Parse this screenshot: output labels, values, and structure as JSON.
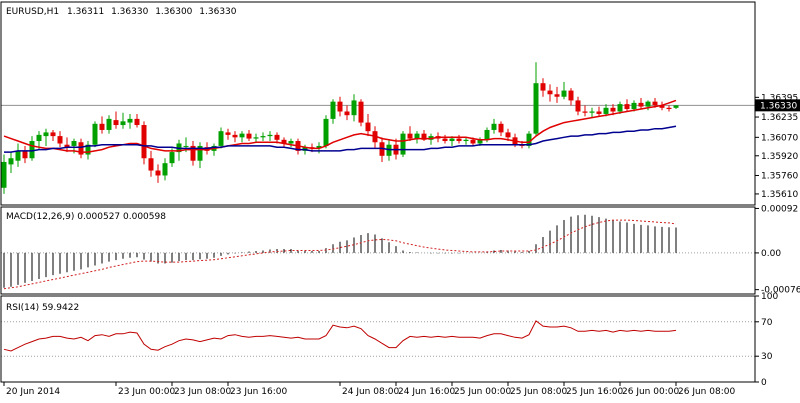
{
  "header": {
    "symbol": "EURUSD,H1",
    "open": "1.36311",
    "high": "1.36330",
    "low": "1.36300",
    "close": "1.36330"
  },
  "colors": {
    "bull": "#00a000",
    "bear": "#e00000",
    "ma_fast": "#e00000",
    "ma_slow": "#000090",
    "macd_hist": "#000000",
    "macd_signal": "#d02020",
    "rsi": "#c00000",
    "price_line": "#909090"
  },
  "chart_data": [
    {
      "type": "candlestick",
      "panel": "price",
      "ylim": [
        1.3552,
        1.3717
      ],
      "ytick_labels": [
        "1.36395",
        "1.36235",
        "1.36070",
        "1.35920",
        "1.35760",
        "1.35610"
      ],
      "ytick_values": [
        1.36395,
        1.36235,
        1.3607,
        1.3592,
        1.3576,
        1.3561
      ],
      "current_price_label": "1.36330",
      "current_price": 1.3633,
      "x_labels": [
        "20 Jun 2014",
        "23 Jun 00:00",
        "23 Jun 08:00",
        "23 Jun 16:00",
        "24 Jun 08:00",
        "24 Jun 16:00",
        "25 Jun 00:00",
        "25 Jun 08:00",
        "25 Jun 16:00",
        "26 Jun 00:00",
        "26 Jun 08:00"
      ],
      "x_label_bars": [
        0,
        16,
        24,
        32,
        48,
        56,
        64,
        72,
        80,
        88,
        96
      ],
      "candles": [
        [
          1.3566,
          1.3593,
          1.3561,
          1.3587
        ],
        [
          1.3585,
          1.3595,
          1.3578,
          1.359
        ],
        [
          1.3588,
          1.3602,
          1.3583,
          1.3596
        ],
        [
          1.3596,
          1.36,
          1.3586,
          1.359
        ],
        [
          1.359,
          1.3608,
          1.3588,
          1.3604
        ],
        [
          1.3604,
          1.3612,
          1.3597,
          1.3609
        ],
        [
          1.3608,
          1.3614,
          1.36,
          1.3611
        ],
        [
          1.3611,
          1.3613,
          1.3604,
          1.3608
        ],
        [
          1.3608,
          1.3612,
          1.3599,
          1.3602
        ],
        [
          1.3601,
          1.3607,
          1.3595,
          1.3599
        ],
        [
          1.36,
          1.3606,
          1.3594,
          1.3604
        ],
        [
          1.3603,
          1.3606,
          1.359,
          1.3593
        ],
        [
          1.3593,
          1.3604,
          1.3589,
          1.3601
        ],
        [
          1.3601,
          1.362,
          1.3599,
          1.3618
        ],
        [
          1.3618,
          1.3624,
          1.361,
          1.3613
        ],
        [
          1.3613,
          1.3625,
          1.361,
          1.3622
        ],
        [
          1.3621,
          1.3628,
          1.3614,
          1.3617
        ],
        [
          1.3617,
          1.3627,
          1.3614,
          1.362
        ],
        [
          1.3619,
          1.3626,
          1.3614,
          1.3622
        ],
        [
          1.3622,
          1.3626,
          1.3615,
          1.3617
        ],
        [
          1.3617,
          1.362,
          1.3585,
          1.359
        ],
        [
          1.359,
          1.3596,
          1.3575,
          1.358
        ],
        [
          1.358,
          1.3585,
          1.357,
          1.3576
        ],
        [
          1.3576,
          1.359,
          1.3572,
          1.3586
        ],
        [
          1.3586,
          1.3598,
          1.3583,
          1.3595
        ],
        [
          1.3595,
          1.3605,
          1.3588,
          1.3602
        ],
        [
          1.36,
          1.3607,
          1.3595,
          1.36
        ],
        [
          1.36,
          1.3604,
          1.3584,
          1.3588
        ],
        [
          1.3588,
          1.3603,
          1.3582,
          1.36
        ],
        [
          1.3599,
          1.3603,
          1.3593,
          1.3596
        ],
        [
          1.3596,
          1.3602,
          1.3592,
          1.36
        ],
        [
          1.36,
          1.3615,
          1.3598,
          1.3612
        ],
        [
          1.3611,
          1.3614,
          1.3605,
          1.3609
        ],
        [
          1.3609,
          1.3612,
          1.3603,
          1.3607
        ],
        [
          1.3607,
          1.3612,
          1.3603,
          1.361
        ],
        [
          1.361,
          1.3613,
          1.3604,
          1.3606
        ],
        [
          1.3606,
          1.361,
          1.3603,
          1.3607
        ],
        [
          1.3607,
          1.3611,
          1.3604,
          1.3608
        ],
        [
          1.3608,
          1.3612,
          1.3604,
          1.3609
        ],
        [
          1.3609,
          1.3611,
          1.3602,
          1.3605
        ],
        [
          1.3605,
          1.3607,
          1.3599,
          1.3602
        ],
        [
          1.3602,
          1.3606,
          1.3599,
          1.3604
        ],
        [
          1.3604,
          1.3606,
          1.3593,
          1.3596
        ],
        [
          1.3596,
          1.3601,
          1.3593,
          1.3599
        ],
        [
          1.3599,
          1.3602,
          1.3595,
          1.3598
        ],
        [
          1.3598,
          1.3603,
          1.3594,
          1.36
        ],
        [
          1.36,
          1.3625,
          1.3598,
          1.3622
        ],
        [
          1.3622,
          1.3638,
          1.3618,
          1.3636
        ],
        [
          1.3636,
          1.364,
          1.3624,
          1.3628
        ],
        [
          1.3628,
          1.3633,
          1.3621,
          1.3625
        ],
        [
          1.3625,
          1.3642,
          1.362,
          1.3637
        ],
        [
          1.3636,
          1.3638,
          1.3616,
          1.3619
        ],
        [
          1.3619,
          1.3626,
          1.3608,
          1.3612
        ],
        [
          1.3612,
          1.3616,
          1.3598,
          1.3603
        ],
        [
          1.3603,
          1.3607,
          1.3587,
          1.3592
        ],
        [
          1.3592,
          1.3605,
          1.3588,
          1.3601
        ],
        [
          1.3601,
          1.3606,
          1.3589,
          1.3593
        ],
        [
          1.3593,
          1.3612,
          1.3591,
          1.361
        ],
        [
          1.361,
          1.3616,
          1.3604,
          1.3606
        ],
        [
          1.3606,
          1.3612,
          1.3602,
          1.361
        ],
        [
          1.361,
          1.3613,
          1.3604,
          1.3605
        ],
        [
          1.3605,
          1.361,
          1.3601,
          1.3608
        ],
        [
          1.3608,
          1.3611,
          1.3603,
          1.3606
        ],
        [
          1.3606,
          1.3609,
          1.3602,
          1.3604
        ],
        [
          1.3604,
          1.3608,
          1.36,
          1.3606
        ],
        [
          1.3606,
          1.3609,
          1.3602,
          1.3604
        ],
        [
          1.3604,
          1.3607,
          1.3601,
          1.3605
        ],
        [
          1.3605,
          1.3607,
          1.36,
          1.3602
        ],
        [
          1.3602,
          1.3607,
          1.36,
          1.3605
        ],
        [
          1.3605,
          1.3615,
          1.3603,
          1.3613
        ],
        [
          1.3613,
          1.3622,
          1.361,
          1.3618
        ],
        [
          1.3618,
          1.362,
          1.3608,
          1.3611
        ],
        [
          1.3611,
          1.3614,
          1.3604,
          1.3607
        ],
        [
          1.3607,
          1.361,
          1.3599,
          1.3601
        ],
        [
          1.3601,
          1.3604,
          1.3598,
          1.36
        ],
        [
          1.36,
          1.3612,
          1.3598,
          1.361
        ],
        [
          1.361,
          1.3668,
          1.3608,
          1.3651
        ],
        [
          1.3651,
          1.3655,
          1.364,
          1.3645
        ],
        [
          1.3645,
          1.365,
          1.3636,
          1.3642
        ],
        [
          1.3642,
          1.3648,
          1.3635,
          1.364
        ],
        [
          1.364,
          1.3652,
          1.3638,
          1.3645
        ],
        [
          1.3645,
          1.3647,
          1.3633,
          1.3637
        ],
        [
          1.3637,
          1.364,
          1.3625,
          1.3628
        ],
        [
          1.3628,
          1.3633,
          1.3624,
          1.3627
        ],
        [
          1.3627,
          1.3631,
          1.3623,
          1.3628
        ],
        [
          1.3628,
          1.3632,
          1.3624,
          1.3626
        ],
        [
          1.3626,
          1.3634,
          1.3624,
          1.3631
        ],
        [
          1.3631,
          1.3634,
          1.3625,
          1.3628
        ],
        [
          1.3628,
          1.3636,
          1.3626,
          1.3634
        ],
        [
          1.3634,
          1.3638,
          1.3628,
          1.363
        ],
        [
          1.363,
          1.3637,
          1.3628,
          1.3635
        ],
        [
          1.3635,
          1.3639,
          1.363,
          1.3632
        ],
        [
          1.3632,
          1.3637,
          1.3629,
          1.3636
        ],
        [
          1.3636,
          1.3639,
          1.3631,
          1.3633
        ],
        [
          1.3633,
          1.3636,
          1.3629,
          1.3631
        ],
        [
          1.3631,
          1.3633,
          1.3628,
          1.363
        ],
        [
          1.3631,
          1.3633,
          1.363,
          1.3633
        ]
      ],
      "ma_fast": [
        1.3608,
        1.3606,
        1.3604,
        1.3602,
        1.36,
        1.3599,
        1.3598,
        1.3598,
        1.3597,
        1.3596,
        1.3596,
        1.3595,
        1.3595,
        1.3596,
        1.3597,
        1.3599,
        1.36,
        1.3601,
        1.3602,
        1.3602,
        1.36,
        1.3598,
        1.3597,
        1.3596,
        1.3596,
        1.3596,
        1.3597,
        1.3597,
        1.3597,
        1.3597,
        1.3598,
        1.3599,
        1.36,
        1.3601,
        1.3602,
        1.3602,
        1.3603,
        1.3603,
        1.3603,
        1.3603,
        1.3602,
        1.3601,
        1.36,
        1.3599,
        1.3598,
        1.3598,
        1.36,
        1.3603,
        1.3605,
        1.3607,
        1.3609,
        1.361,
        1.3609,
        1.3608,
        1.3606,
        1.3605,
        1.3604,
        1.3604,
        1.3605,
        1.3606,
        1.3606,
        1.3606,
        1.3607,
        1.3607,
        1.3607,
        1.3607,
        1.3607,
        1.3606,
        1.3605,
        1.3605,
        1.3606,
        1.3606,
        1.3605,
        1.3604,
        1.3603,
        1.3603,
        1.3608,
        1.3612,
        1.3615,
        1.3617,
        1.3619,
        1.362,
        1.3621,
        1.3622,
        1.3623,
        1.3624,
        1.3625,
        1.3626,
        1.3627,
        1.3628,
        1.3629,
        1.363,
        1.3631,
        1.3632,
        1.3633,
        1.3635,
        1.3637
      ],
      "ma_slow": [
        1.3595,
        1.3595,
        1.3596,
        1.3596,
        1.3596,
        1.3597,
        1.3597,
        1.3598,
        1.3598,
        1.3599,
        1.3599,
        1.3599,
        1.36,
        1.36,
        1.3601,
        1.3601,
        1.3601,
        1.3601,
        1.3601,
        1.3601,
        1.36,
        1.36,
        1.3599,
        1.3599,
        1.3599,
        1.3598,
        1.3598,
        1.3598,
        1.3598,
        1.3598,
        1.3599,
        1.3599,
        1.36,
        1.36,
        1.36,
        1.36,
        1.36,
        1.36,
        1.36,
        1.3599,
        1.3599,
        1.3598,
        1.3597,
        1.3597,
        1.3596,
        1.3596,
        1.3596,
        1.3596,
        1.3596,
        1.3597,
        1.3597,
        1.3598,
        1.3598,
        1.3598,
        1.3598,
        1.3597,
        1.3597,
        1.3597,
        1.3597,
        1.3597,
        1.3597,
        1.3598,
        1.3598,
        1.3599,
        1.3599,
        1.36,
        1.36,
        1.36,
        1.3601,
        1.3601,
        1.3601,
        1.3601,
        1.3601,
        1.3601,
        1.3601,
        1.3601,
        1.3602,
        1.3604,
        1.3605,
        1.3606,
        1.3607,
        1.3608,
        1.3608,
        1.3609,
        1.3609,
        1.361,
        1.361,
        1.3611,
        1.3611,
        1.3612,
        1.3612,
        1.3613,
        1.3613,
        1.3614,
        1.3614,
        1.3615,
        1.3616
      ]
    },
    {
      "type": "histogram",
      "panel": "macd",
      "label": "MACD(12,26,9) 0.000527 0.000598",
      "ylim": [
        -0.00085,
        0.00095
      ],
      "ytick_labels": [
        "0.00092",
        "0.00",
        "-0.00076"
      ],
      "ytick_values": [
        0.00092,
        0.0,
        -0.00076
      ],
      "zero_line": 0.0,
      "histogram": [
        -0.00072,
        -0.0007,
        -0.00066,
        -0.00062,
        -0.00058,
        -0.00054,
        -0.0005,
        -0.00046,
        -0.00043,
        -0.0004,
        -0.00037,
        -0.00034,
        -0.0003,
        -0.00026,
        -0.00022,
        -0.00018,
        -0.00015,
        -0.00012,
        -0.0001,
        -9e-05,
        -0.00014,
        -0.00018,
        -0.00022,
        -0.00022,
        -0.0002,
        -0.00017,
        -0.00015,
        -0.00015,
        -0.00013,
        -0.00012,
        -0.0001,
        -6e-05,
        -3e-05,
        -1e-05,
        1e-05,
        3e-05,
        4e-05,
        5e-05,
        7e-05,
        8e-05,
        8e-05,
        8e-05,
        6e-05,
        5e-05,
        4e-05,
        4e-05,
        0.0001,
        0.00018,
        0.00023,
        0.00026,
        0.00032,
        0.00037,
        0.00041,
        0.00038,
        0.0003,
        0.00022,
        0.00014,
        5e-05,
        2e-05,
        1e-05,
        0.0,
        -1e-05,
        -1e-05,
        -1e-05,
        -1e-05,
        -1e-05,
        0.0,
        0.0,
        0.0,
        2e-05,
        5e-05,
        6e-05,
        5e-05,
        3e-05,
        2e-05,
        4e-05,
        0.00018,
        0.00033,
        0.00046,
        0.00057,
        0.00068,
        0.00075,
        0.00078,
        0.00079,
        0.00077,
        0.00074,
        0.00071,
        0.00068,
        0.00065,
        0.00063,
        0.0006,
        0.00058,
        0.00057,
        0.00055,
        0.00054,
        0.00053,
        0.000527
      ],
      "signal": [
        -0.00074,
        -0.00072,
        -0.0007,
        -0.00067,
        -0.00064,
        -0.00061,
        -0.00058,
        -0.00055,
        -0.00052,
        -0.00049,
        -0.00046,
        -0.00043,
        -0.0004,
        -0.00037,
        -0.00034,
        -0.0003,
        -0.00027,
        -0.00024,
        -0.00021,
        -0.00018,
        -0.00017,
        -0.00017,
        -0.00018,
        -0.00019,
        -0.00019,
        -0.00019,
        -0.00018,
        -0.00017,
        -0.00016,
        -0.00015,
        -0.00014,
        -0.00012,
        -0.0001,
        -8e-05,
        -6e-05,
        -4e-05,
        -2e-05,
        0.0,
        2e-05,
        3e-05,
        4e-05,
        5e-05,
        5e-05,
        5e-05,
        5e-05,
        5e-05,
        6e-05,
        8e-05,
        0.00011,
        0.00014,
        0.00017,
        0.00021,
        0.00025,
        0.00027,
        0.00028,
        0.00027,
        0.00025,
        0.00021,
        0.00018,
        0.00015,
        0.00012,
        0.0001,
        8e-05,
        6e-05,
        5e-05,
        4e-05,
        3e-05,
        2e-05,
        2e-05,
        2e-05,
        3e-05,
        4e-05,
        4e-05,
        4e-05,
        4e-05,
        4e-05,
        6e-05,
        0.00012,
        0.00018,
        0.00025,
        0.00033,
        0.00041,
        0.00048,
        0.00054,
        0.00059,
        0.00063,
        0.00066,
        0.00068,
        0.00068,
        0.00068,
        0.00067,
        0.00066,
        0.00065,
        0.00064,
        0.00063,
        0.00062,
        0.000598
      ]
    },
    {
      "type": "line",
      "panel": "rsi",
      "label": "RSI(14) 59.9422",
      "ylim": [
        0,
        100
      ],
      "ytick_labels": [
        "100",
        "70",
        "30",
        "0"
      ],
      "ytick_values": [
        100,
        70,
        30,
        0
      ],
      "levels": [
        70,
        30
      ],
      "values": [
        38,
        36,
        40,
        44,
        47,
        50,
        51,
        53,
        53,
        51,
        50,
        52,
        48,
        54,
        55,
        53,
        56,
        56,
        58,
        57,
        44,
        38,
        37,
        41,
        44,
        48,
        50,
        49,
        47,
        49,
        51,
        50,
        54,
        55,
        53,
        52,
        53,
        53,
        54,
        53,
        52,
        51,
        52,
        50,
        50,
        50,
        54,
        66,
        64,
        63,
        65,
        62,
        54,
        50,
        45,
        40,
        40,
        48,
        53,
        52,
        53,
        52,
        53,
        52,
        53,
        52,
        52,
        52,
        51,
        54,
        56,
        56,
        54,
        52,
        51,
        55,
        71,
        65,
        64,
        64,
        65,
        63,
        59,
        59,
        60,
        59,
        60,
        58,
        60,
        59,
        60,
        59,
        60,
        59,
        59,
        59,
        59.9422
      ]
    }
  ]
}
